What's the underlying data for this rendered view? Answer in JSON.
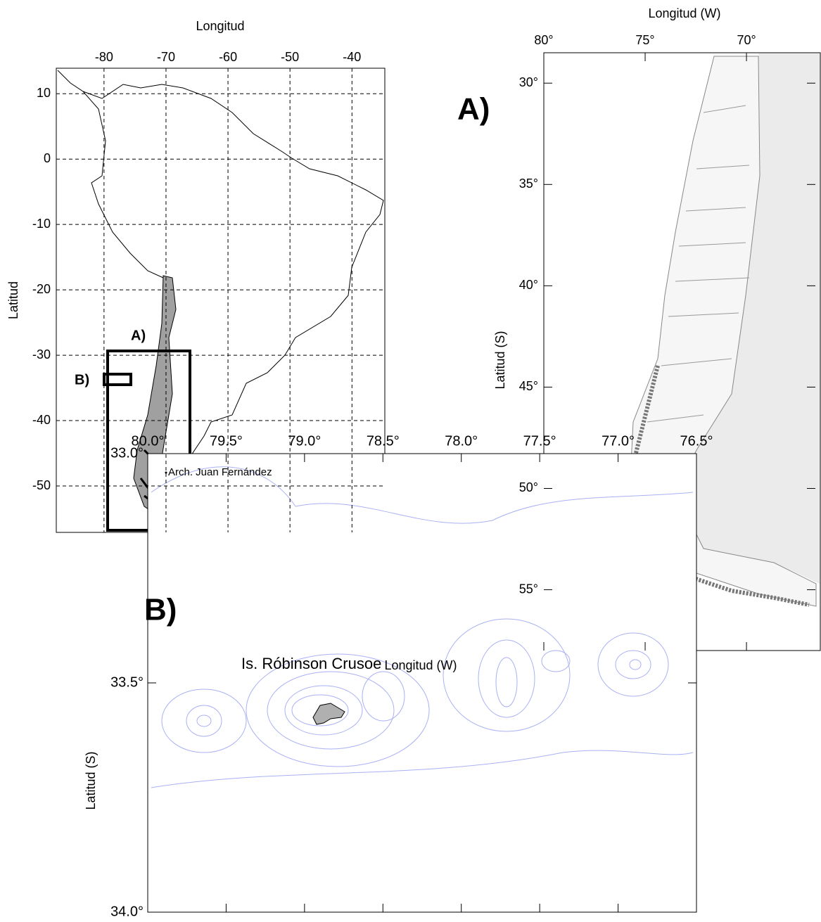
{
  "overview": {
    "xlabel": "Longitud",
    "ylabel": "Latitud",
    "xlim": [
      -87.7,
      -34.7
    ],
    "ylim": [
      13.9,
      -57.1
    ],
    "xticks": [
      -80,
      -70,
      -60,
      -50,
      -40
    ],
    "yticks": [
      10,
      0,
      -10,
      -20,
      -30,
      -40,
      -50
    ],
    "box_a_label": "A)",
    "box_b_label": "B)"
  },
  "panel_a": {
    "tag": "A)",
    "xlabel": "Longitud (W)",
    "ylabel": "Latitud (S)",
    "xlim": [
      80,
      66.6
    ],
    "ylim": [
      28.5,
      58
    ],
    "xticks": [
      {
        "value": 80,
        "label": "80°"
      },
      {
        "value": 75,
        "label": "75°"
      },
      {
        "value": 70,
        "label": "70°"
      }
    ],
    "yticks": [
      {
        "value": 30,
        "label": "30°"
      },
      {
        "value": 35,
        "label": "35°"
      },
      {
        "value": 40,
        "label": "40°"
      },
      {
        "value": 45,
        "label": "45°"
      },
      {
        "value": 50,
        "label": "50°"
      },
      {
        "value": 55,
        "label": "55°"
      }
    ]
  },
  "panel_b": {
    "tag": "B)",
    "xlabel": "Longitud (W)",
    "ylabel": "Latitud (S)",
    "xlim": [
      80,
      76.5
    ],
    "ylim": [
      33,
      34
    ],
    "xticks": [
      {
        "value": 80,
        "label": "80.0°"
      },
      {
        "value": 79.5,
        "label": "79.5°"
      },
      {
        "value": 79,
        "label": "79.0°"
      },
      {
        "value": 78.5,
        "label": "78.5°"
      },
      {
        "value": 78,
        "label": "78.0°"
      },
      {
        "value": 77.5,
        "label": "77.5°"
      },
      {
        "value": 77,
        "label": "77.0°"
      },
      {
        "value": 76.5,
        "label": "76.5°"
      }
    ],
    "yticks": [
      {
        "value": 33,
        "label": "33.0°"
      },
      {
        "value": 33.5,
        "label": "33.5°"
      },
      {
        "value": 34,
        "label": "34.0°"
      }
    ],
    "archipelago_label": "Arch. Juan Fernández",
    "island_label": "Is. Róbinson Crusoe"
  }
}
